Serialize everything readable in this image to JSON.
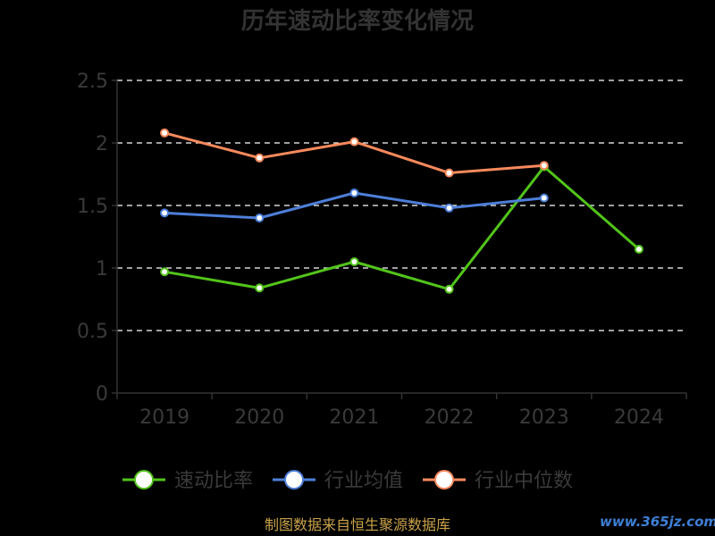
{
  "chart_data": {
    "type": "line",
    "title": "历年速动比率变化情况",
    "categories": [
      "2019",
      "2020",
      "2021",
      "2022",
      "2023",
      "2024"
    ],
    "ylim": [
      0,
      2.5
    ],
    "yticks": [
      "0",
      "0.5",
      "1",
      "1.5",
      "2",
      "2.5"
    ],
    "grid": true,
    "legend_position": "bottom",
    "series": [
      {
        "name": "速动比率",
        "color": "#52c41a",
        "values": [
          0.97,
          0.84,
          1.05,
          0.83,
          1.81,
          1.15
        ]
      },
      {
        "name": "行业均值",
        "color": "#4d7fd9",
        "values": [
          1.44,
          1.4,
          1.6,
          1.48,
          1.56,
          null
        ]
      },
      {
        "name": "行业中位数",
        "color": "#f98a5c",
        "values": [
          2.08,
          1.88,
          2.01,
          1.76,
          1.82,
          null
        ]
      }
    ],
    "source_text": "制图数据来自恒生聚源数据库",
    "watermark": "www.365jz.com"
  }
}
